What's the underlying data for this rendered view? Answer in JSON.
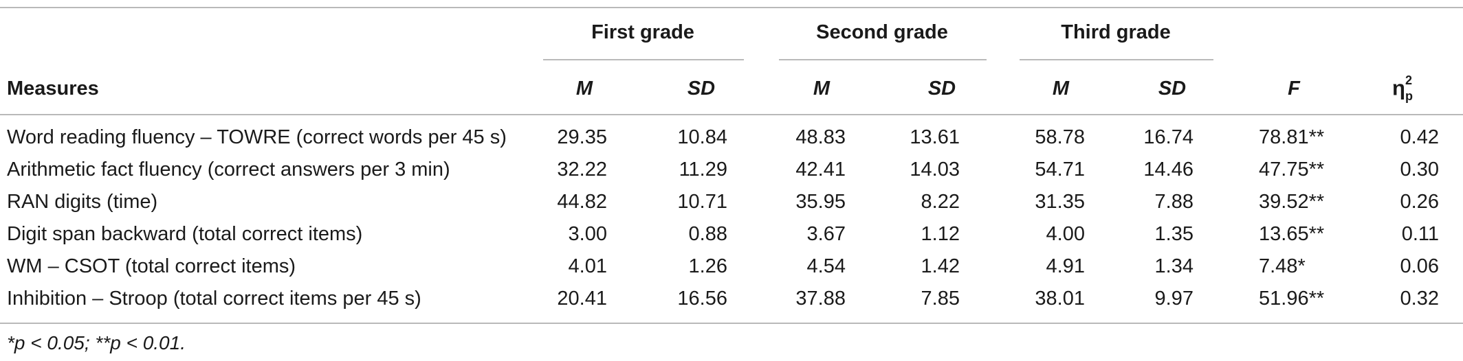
{
  "headers": {
    "measures": "Measures",
    "groups": [
      "First grade",
      "Second grade",
      "Third grade"
    ],
    "m": "M",
    "sd": "SD",
    "f": "F",
    "eta_symbol": "η",
    "eta_sup": "2",
    "eta_sub": "p"
  },
  "rows": [
    {
      "measure": "Word reading fluency – TOWRE (correct words per 45 s)",
      "m1": "29.35",
      "sd1": "10.84",
      "m2": "48.83",
      "sd2": "13.61",
      "m3": "58.78",
      "sd3": "16.74",
      "f": "78.81**",
      "eta": "0.42"
    },
    {
      "measure": "Arithmetic fact fluency (correct answers per 3 min)",
      "m1": "32.22",
      "sd1": "11.29",
      "m2": "42.41",
      "sd2": "14.03",
      "m3": "54.71",
      "sd3": "14.46",
      "f": "47.75**",
      "eta": "0.30"
    },
    {
      "measure": "RAN digits (time)",
      "m1": "44.82",
      "sd1": "10.71",
      "m2": "35.95",
      "sd2": "8.22",
      "m3": "31.35",
      "sd3": "7.88",
      "f": "39.52**",
      "eta": "0.26"
    },
    {
      "measure": "Digit span backward (total correct items)",
      "m1": "3.00",
      "sd1": "0.88",
      "m2": "3.67",
      "sd2": "1.12",
      "m3": "4.00",
      "sd3": "1.35",
      "f": "13.65**",
      "eta": "0.11"
    },
    {
      "measure": "WM – CSOT (total correct items)",
      "m1": "4.01",
      "sd1": "1.26",
      "m2": "4.54",
      "sd2": "1.42",
      "m3": "4.91",
      "sd3": "1.34",
      "f": "7.48*",
      "eta": "0.06"
    },
    {
      "measure": "Inhibition – Stroop (total correct items per 45 s)",
      "m1": "20.41",
      "sd1": "16.56",
      "m2": "37.88",
      "sd2": "7.85",
      "m3": "38.01",
      "sd3": "9.97",
      "f": "51.96**",
      "eta": "0.32"
    }
  ],
  "footnote": "*p < 0.05; **p < 0.01."
}
